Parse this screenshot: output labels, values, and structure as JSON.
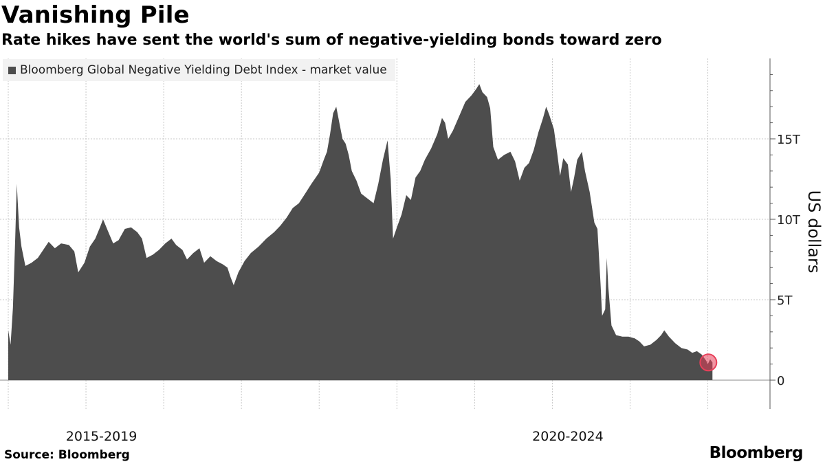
{
  "page": {
    "title": "Vanishing Pile",
    "subtitle": "Rate hikes have sent the world's sum of negative-yielding bonds toward zero",
    "source": "Source: Bloomberg",
    "brand": "Bloomberg"
  },
  "colors": {
    "area": "#4d4d4d",
    "grid": "#c8c8c8",
    "highlight": "#e8405a",
    "axis": "#555555",
    "legend_bg": "#f2f2f2"
  },
  "chart_data": {
    "type": "area",
    "title": "Vanishing Pile",
    "subtitle": "Rate hikes have sent the world's sum of negative-yielding bonds toward zero",
    "legend": [
      "Bloomberg Global Negative Yielding Debt Index - market value"
    ],
    "xlabel": "",
    "ylabel": "US dollars",
    "x_period_labels": [
      "2015-2019",
      "2020-2024"
    ],
    "xlim": [
      2014.0,
      2023.8
    ],
    "ylim": [
      0,
      20
    ],
    "y_ticks": [
      0,
      5,
      10,
      15
    ],
    "y_tick_labels": [
      "0",
      "5T",
      "10T",
      "15T"
    ],
    "x_gridlines_years": [
      2014,
      2015,
      2016,
      2017,
      2018,
      2019,
      2020,
      2021,
      2022,
      2023
    ],
    "units": "trillions of US dollars",
    "series": [
      {
        "name": "Bloomberg Global Negative Yielding Debt Index - market value",
        "points": [
          [
            2014.0,
            3.1
          ],
          [
            2014.03,
            2.2
          ],
          [
            2014.06,
            4.5
          ],
          [
            2014.09,
            8.9
          ],
          [
            2014.11,
            12.2
          ],
          [
            2014.14,
            9.5
          ],
          [
            2014.17,
            8.3
          ],
          [
            2014.22,
            7.1
          ],
          [
            2014.3,
            7.3
          ],
          [
            2014.38,
            7.6
          ],
          [
            2014.45,
            8.1
          ],
          [
            2014.52,
            8.6
          ],
          [
            2014.6,
            8.2
          ],
          [
            2014.68,
            8.5
          ],
          [
            2014.78,
            8.4
          ],
          [
            2014.85,
            8.0
          ],
          [
            2014.9,
            6.7
          ],
          [
            2014.98,
            7.3
          ],
          [
            2015.05,
            8.3
          ],
          [
            2015.12,
            8.8
          ],
          [
            2015.18,
            9.5
          ],
          [
            2015.22,
            10.0
          ],
          [
            2015.28,
            9.3
          ],
          [
            2015.35,
            8.5
          ],
          [
            2015.42,
            8.7
          ],
          [
            2015.5,
            9.4
          ],
          [
            2015.58,
            9.5
          ],
          [
            2015.66,
            9.2
          ],
          [
            2015.72,
            8.8
          ],
          [
            2015.78,
            7.6
          ],
          [
            2015.86,
            7.8
          ],
          [
            2015.94,
            8.1
          ],
          [
            2016.02,
            8.5
          ],
          [
            2016.1,
            8.8
          ],
          [
            2016.16,
            8.4
          ],
          [
            2016.24,
            8.1
          ],
          [
            2016.3,
            7.5
          ],
          [
            2016.38,
            7.9
          ],
          [
            2016.46,
            8.2
          ],
          [
            2016.52,
            7.3
          ],
          [
            2016.6,
            7.7
          ],
          [
            2016.68,
            7.4
          ],
          [
            2016.76,
            7.2
          ],
          [
            2016.82,
            7.0
          ],
          [
            2016.86,
            6.4
          ],
          [
            2016.9,
            5.9
          ],
          [
            2016.96,
            6.7
          ],
          [
            2017.04,
            7.4
          ],
          [
            2017.12,
            7.9
          ],
          [
            2017.22,
            8.3
          ],
          [
            2017.32,
            8.8
          ],
          [
            2017.42,
            9.2
          ],
          [
            2017.5,
            9.6
          ],
          [
            2017.58,
            10.1
          ],
          [
            2017.66,
            10.7
          ],
          [
            2017.74,
            11.0
          ],
          [
            2017.82,
            11.6
          ],
          [
            2017.9,
            12.2
          ],
          [
            2018.0,
            12.9
          ],
          [
            2018.06,
            13.7
          ],
          [
            2018.1,
            14.2
          ],
          [
            2018.14,
            15.3
          ],
          [
            2018.18,
            16.6
          ],
          [
            2018.22,
            17.0
          ],
          [
            2018.26,
            16.0
          ],
          [
            2018.3,
            15.0
          ],
          [
            2018.34,
            14.7
          ],
          [
            2018.38,
            14.0
          ],
          [
            2018.42,
            13.0
          ],
          [
            2018.48,
            12.4
          ],
          [
            2018.54,
            11.6
          ],
          [
            2018.62,
            11.3
          ],
          [
            2018.7,
            11.0
          ],
          [
            2018.76,
            12.2
          ],
          [
            2018.82,
            13.7
          ],
          [
            2018.88,
            14.9
          ],
          [
            2018.92,
            12.5
          ],
          [
            2018.95,
            8.8
          ],
          [
            2019.0,
            9.5
          ],
          [
            2019.06,
            10.3
          ],
          [
            2019.12,
            11.5
          ],
          [
            2019.18,
            11.2
          ],
          [
            2019.24,
            12.6
          ],
          [
            2019.3,
            13.0
          ],
          [
            2019.36,
            13.7
          ],
          [
            2019.44,
            14.4
          ],
          [
            2019.52,
            15.3
          ],
          [
            2019.58,
            16.3
          ],
          [
            2019.62,
            16.0
          ],
          [
            2019.66,
            15.0
          ],
          [
            2019.72,
            15.5
          ],
          [
            2019.8,
            16.4
          ],
          [
            2019.88,
            17.3
          ],
          [
            2019.96,
            17.7
          ],
          [
            2020.02,
            18.1
          ],
          [
            2020.06,
            18.4
          ],
          [
            2020.1,
            17.9
          ],
          [
            2020.16,
            17.6
          ],
          [
            2020.2,
            16.9
          ],
          [
            2020.24,
            14.5
          ],
          [
            2020.3,
            13.7
          ],
          [
            2020.38,
            14.0
          ],
          [
            2020.46,
            14.2
          ],
          [
            2020.52,
            13.6
          ],
          [
            2020.58,
            12.4
          ],
          [
            2020.64,
            13.2
          ],
          [
            2020.7,
            13.5
          ],
          [
            2020.76,
            14.3
          ],
          [
            2020.82,
            15.4
          ],
          [
            2020.88,
            16.3
          ],
          [
            2020.92,
            17.0
          ],
          [
            2020.96,
            16.5
          ],
          [
            2021.02,
            15.6
          ],
          [
            2021.06,
            14.2
          ],
          [
            2021.1,
            12.7
          ],
          [
            2021.14,
            13.8
          ],
          [
            2021.2,
            13.4
          ],
          [
            2021.24,
            11.7
          ],
          [
            2021.28,
            12.6
          ],
          [
            2021.32,
            13.7
          ],
          [
            2021.38,
            14.2
          ],
          [
            2021.42,
            13.0
          ],
          [
            2021.48,
            11.7
          ],
          [
            2021.54,
            9.8
          ],
          [
            2021.58,
            9.4
          ],
          [
            2021.62,
            6.0
          ],
          [
            2021.64,
            4.0
          ],
          [
            2021.68,
            4.4
          ],
          [
            2021.7,
            7.6
          ],
          [
            2021.72,
            5.8
          ],
          [
            2021.76,
            3.4
          ],
          [
            2021.82,
            2.8
          ],
          [
            2021.9,
            2.7
          ],
          [
            2021.98,
            2.7
          ],
          [
            2022.06,
            2.6
          ],
          [
            2022.12,
            2.4
          ],
          [
            2022.18,
            2.1
          ],
          [
            2022.26,
            2.2
          ],
          [
            2022.34,
            2.5
          ],
          [
            2022.4,
            2.8
          ],
          [
            2022.44,
            3.1
          ],
          [
            2022.5,
            2.7
          ],
          [
            2022.58,
            2.3
          ],
          [
            2022.66,
            2.0
          ],
          [
            2022.74,
            1.9
          ],
          [
            2022.8,
            1.7
          ],
          [
            2022.86,
            1.8
          ],
          [
            2022.92,
            1.6
          ],
          [
            2022.98,
            1.2
          ],
          [
            2023.0,
            1.0
          ],
          [
            2023.03,
            1.3
          ],
          [
            2023.06,
            1.1
          ]
        ]
      }
    ],
    "highlight": {
      "x": 2023.06,
      "y": 1.1,
      "note": "latest value marker"
    }
  }
}
